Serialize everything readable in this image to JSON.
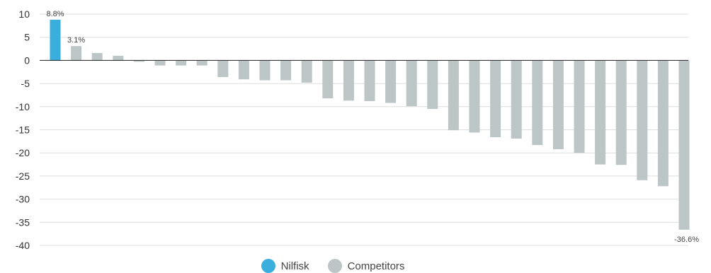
{
  "chart_data": {
    "type": "bar",
    "y_ticks": [
      "10",
      "5",
      "0",
      "-5",
      "-10",
      "-15",
      "-20",
      "-25",
      "-30",
      "-35",
      "-40"
    ],
    "ylim": [
      -40,
      10
    ],
    "grid": true,
    "legend_position": "bottom-center",
    "series": [
      {
        "name": "Nilfisk",
        "color": "#3aaedc",
        "values": [
          8.8,
          null,
          null,
          null,
          null,
          null,
          null,
          null,
          null,
          null,
          null,
          null,
          null,
          null,
          null,
          null,
          null,
          null,
          null,
          null,
          null,
          null,
          null,
          null,
          null,
          null,
          null,
          null,
          null,
          null,
          null
        ]
      },
      {
        "name": "Competitors",
        "color": "#bcc6c7",
        "values": [
          null,
          3.1,
          1.6,
          1.0,
          -0.3,
          -1.1,
          -1.1,
          -1.1,
          -3.6,
          -4.1,
          -4.3,
          -4.3,
          -4.8,
          -8.2,
          -8.7,
          -8.8,
          -9.2,
          -9.9,
          -10.5,
          -15.1,
          -15.6,
          -16.6,
          -16.9,
          -18.3,
          -19.2,
          -20.0,
          -22.5,
          -22.6,
          -25.9,
          -27.2,
          -36.6
        ]
      }
    ],
    "data_labels": [
      {
        "index": 0,
        "text": "8.8%"
      },
      {
        "index": 1,
        "text": "3.1%"
      },
      {
        "index": 30,
        "text": "-36.6%"
      }
    ]
  },
  "legend": [
    {
      "label": "Nilfisk",
      "color": "#3aaedc"
    },
    {
      "label": "Competitors",
      "color": "#bcc6c7"
    }
  ]
}
